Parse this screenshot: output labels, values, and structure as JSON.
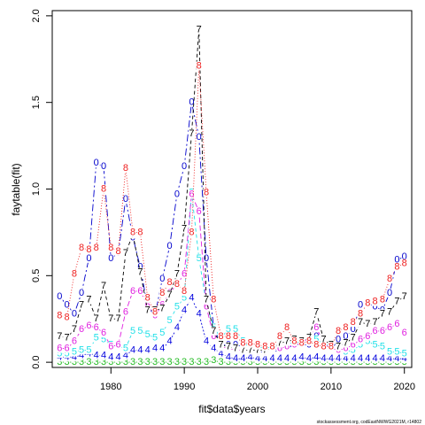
{
  "chart_data": {
    "type": "line",
    "title": "",
    "xlabel": "fit$data$years",
    "ylabel": "faytable(fit)",
    "xlim": [
      1972,
      2021
    ],
    "ylim": [
      -0.03,
      2.03
    ],
    "x_ticks": [
      1980,
      1990,
      2000,
      2010,
      2020
    ],
    "y_ticks": [
      0.0,
      0.5,
      1.0,
      1.5,
      2.0
    ],
    "y_tick_labels": [
      "0.0",
      "0.5",
      "1.0",
      "1.5",
      "2.0"
    ],
    "grid": false,
    "legend": "none",
    "footnote": "stockassessment.org, codEastNWWG2021M, r14802",
    "x": [
      1973,
      1974,
      1975,
      1976,
      1977,
      1978,
      1979,
      1980,
      1981,
      1982,
      1983,
      1984,
      1985,
      1986,
      1987,
      1988,
      1989,
      1990,
      1991,
      1992,
      1993,
      1994,
      1995,
      1996,
      1997,
      1998,
      1999,
      2000,
      2001,
      2002,
      2003,
      2004,
      2005,
      2006,
      2007,
      2008,
      2009,
      2010,
      2011,
      2012,
      2013,
      2014,
      2015,
      2016,
      2017,
      2018,
      2019,
      2020
    ],
    "series": [
      {
        "marker": "0",
        "color": "#0000cc",
        "dash": "8,3,2,3",
        "values": [
          0.38,
          0.33,
          0.28,
          0.4,
          0.6,
          1.15,
          1.13,
          0.6,
          0.63,
          0.94,
          0.72,
          0.55,
          0.32,
          0.27,
          0.48,
          0.67,
          0.97,
          1.13,
          1.5,
          1.3,
          0.6,
          0.2,
          0.1,
          0.1,
          0.1,
          0.09,
          0.08,
          0.06,
          0.06,
          0.06,
          0.07,
          0.08,
          0.1,
          0.1,
          0.1,
          0.15,
          0.12,
          0.07,
          0.13,
          0.15,
          0.19,
          0.33,
          0.34,
          0.32,
          0.3,
          0.4,
          0.59,
          0.61
        ]
      },
      {
        "marker": "3",
        "color": "#22bb22",
        "dash": "",
        "values": [
          0.0,
          0.0,
          0.0,
          0.0,
          0.0,
          0.0,
          0.0,
          0.0,
          0.0,
          0.0,
          0.0,
          0.0,
          0.0,
          0.0,
          0.0,
          0.0,
          0.0,
          0.0,
          0.0,
          0.0,
          0.0,
          0.01,
          0.0,
          0.0,
          0.0,
          0.0,
          0.0,
          0.0,
          0.0,
          0.0,
          0.0,
          0.0,
          0.0,
          0.0,
          0.0,
          0.0,
          0.0,
          0.0,
          0.0,
          0.0,
          0.0,
          0.0,
          0.0,
          0.0,
          0.0,
          0.0,
          0.0,
          0.0
        ]
      },
      {
        "marker": "4",
        "color": "#0000dd",
        "dash": "2,2",
        "values": [
          0.03,
          0.03,
          0.03,
          0.04,
          0.05,
          0.04,
          0.04,
          0.03,
          0.03,
          0.04,
          0.07,
          0.07,
          0.07,
          0.08,
          0.08,
          0.12,
          0.2,
          0.3,
          0.37,
          0.28,
          0.12,
          0.08,
          0.05,
          0.03,
          0.02,
          0.02,
          0.03,
          0.02,
          0.02,
          0.02,
          0.02,
          0.02,
          0.02,
          0.03,
          0.02,
          0.03,
          0.02,
          0.02,
          0.02,
          0.02,
          0.02,
          0.02,
          0.02,
          0.02,
          0.02,
          0.02,
          0.02,
          0.02
        ]
      },
      {
        "marker": "5",
        "color": "#22e0e8",
        "dash": "4,3",
        "values": [
          0.05,
          0.05,
          0.06,
          0.07,
          0.07,
          0.14,
          0.13,
          0.1,
          0.09,
          0.08,
          0.18,
          0.18,
          0.16,
          0.14,
          0.17,
          0.24,
          0.32,
          0.37,
          0.98,
          0.6,
          0.34,
          0.2,
          0.14,
          0.19,
          0.19,
          0.12,
          0.08,
          0.08,
          0.09,
          0.08,
          0.1,
          0.1,
          0.12,
          0.11,
          0.12,
          0.13,
          0.11,
          0.09,
          0.07,
          0.06,
          0.07,
          0.1,
          0.12,
          0.1,
          0.09,
          0.06,
          0.06,
          0.05
        ]
      },
      {
        "marker": "6",
        "color": "#e020e0",
        "dash": "6,3",
        "values": [
          0.08,
          0.08,
          0.12,
          0.19,
          0.21,
          0.2,
          0.17,
          0.09,
          0.1,
          0.29,
          0.41,
          0.41,
          0.33,
          0.27,
          0.33,
          0.4,
          0.45,
          0.51,
          0.97,
          0.87,
          0.32,
          0.15,
          0.09,
          0.08,
          0.07,
          0.07,
          0.07,
          0.06,
          0.06,
          0.07,
          0.08,
          0.09,
          0.1,
          0.11,
          0.14,
          0.2,
          0.11,
          0.08,
          0.07,
          0.08,
          0.1,
          0.13,
          0.15,
          0.18,
          0.18,
          0.2,
          0.22,
          0.17
        ]
      },
      {
        "marker": "7",
        "color": "#000000",
        "dash": "4,3",
        "values": [
          0.15,
          0.14,
          0.19,
          0.33,
          0.36,
          0.25,
          0.44,
          0.25,
          0.25,
          0.63,
          0.74,
          0.52,
          0.3,
          0.3,
          0.31,
          0.39,
          0.51,
          0.77,
          1.32,
          1.92,
          0.36,
          0.18,
          0.1,
          0.09,
          0.08,
          0.07,
          0.07,
          0.07,
          0.07,
          0.08,
          0.11,
          0.12,
          0.13,
          0.12,
          0.14,
          0.29,
          0.13,
          0.1,
          0.09,
          0.11,
          0.14,
          0.23,
          0.22,
          0.23,
          0.28,
          0.29,
          0.35,
          0.38
        ]
      },
      {
        "marker": "8",
        "color": "#ee2020",
        "dash": "1,2",
        "values": [
          0.27,
          0.26,
          0.51,
          0.66,
          0.65,
          0.66,
          1.0,
          0.66,
          0.64,
          1.12,
          0.75,
          0.75,
          0.37,
          0.29,
          0.4,
          0.46,
          0.45,
          0.41,
          0.75,
          1.71,
          0.98,
          0.36,
          0.15,
          0.15,
          0.15,
          0.11,
          0.11,
          0.1,
          0.09,
          0.09,
          0.15,
          0.2,
          0.12,
          0.11,
          0.12,
          0.1,
          0.09,
          0.09,
          0.18,
          0.2,
          0.23,
          0.28,
          0.34,
          0.35,
          0.36,
          0.48,
          0.55,
          0.57
        ]
      }
    ]
  }
}
